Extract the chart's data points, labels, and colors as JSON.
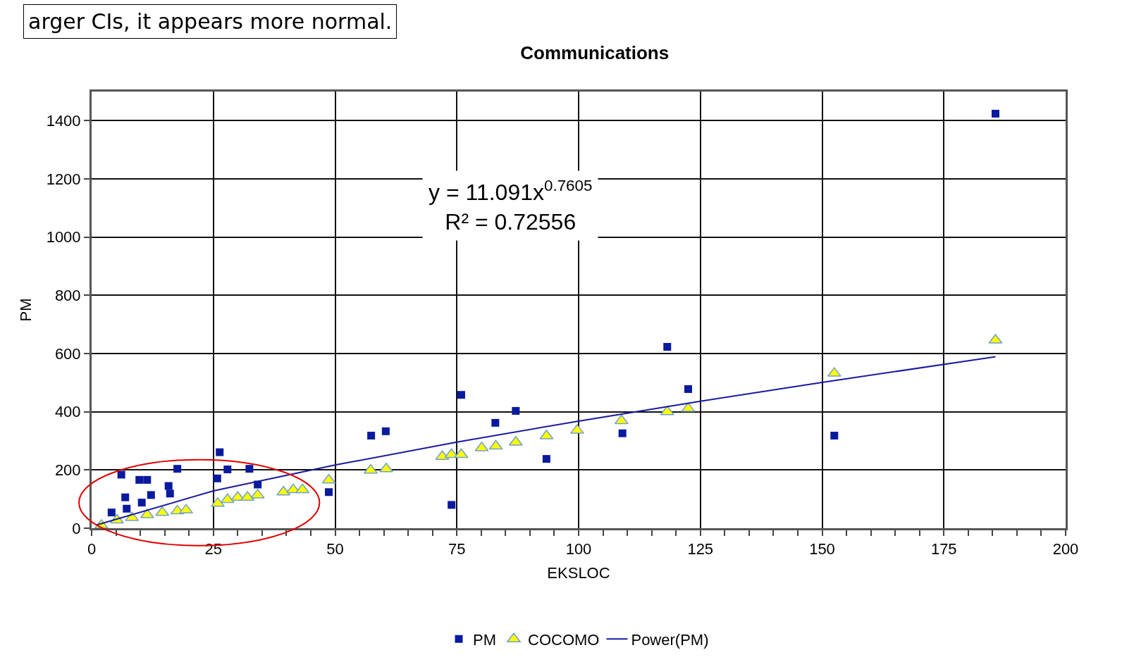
{
  "chart_data": {
    "type": "scatter",
    "title": "Communications",
    "xlabel": "EKSLOC",
    "ylabel": "PM",
    "xlim": [
      0,
      200
    ],
    "ylim": [
      0,
      1500
    ],
    "xticks": [
      0,
      {
        "value": 5,
        "label": null
      },
      {
        "value": 10,
        "label": null
      },
      {
        "value": 15,
        "label": null
      },
      {
        "value": 20,
        "label": null
      },
      25,
      {
        "value": 30,
        "label": null
      },
      {
        "value": 35,
        "label": null
      },
      {
        "value": 40,
        "label": null
      },
      {
        "value": 45,
        "label": null
      },
      50,
      {
        "value": 55,
        "label": null
      },
      {
        "value": 60,
        "label": null
      },
      {
        "value": 65,
        "label": null
      },
      {
        "value": 70,
        "label": null
      },
      75,
      {
        "value": 80,
        "label": null
      },
      {
        "value": 85,
        "label": null
      },
      {
        "value": 90,
        "label": null
      },
      {
        "value": 95,
        "label": null
      },
      100,
      {
        "value": 105,
        "label": null
      },
      {
        "value": 110,
        "label": null
      },
      {
        "value": 115,
        "label": null
      },
      {
        "value": 120,
        "label": null
      },
      125,
      {
        "value": 130,
        "label": null
      },
      {
        "value": 135,
        "label": null
      },
      {
        "value": 140,
        "label": null
      },
      {
        "value": 145,
        "label": null
      },
      150,
      {
        "value": 155,
        "label": null
      },
      {
        "value": 160,
        "label": null
      },
      {
        "value": 165,
        "label": null
      },
      {
        "value": 170,
        "label": null
      },
      175,
      {
        "value": 180,
        "label": null
      },
      {
        "value": 185,
        "label": null
      },
      {
        "value": 190,
        "label": null
      },
      {
        "value": 195,
        "label": null
      },
      200
    ],
    "yticks": [
      0,
      200,
      400,
      600,
      800,
      1000,
      1200,
      1400
    ],
    "grid": true,
    "legend": "bottom",
    "series": [
      {
        "name": "PM",
        "marker": "square",
        "color": "#0a1a9e",
        "x": [
          6.1,
          9.8,
          11.4,
          6.9,
          12.2,
          10.3,
          15.8,
          16.1,
          17.6,
          26.3,
          25.8,
          27.9,
          32.4,
          34.1,
          7.2,
          4.1,
          48.7,
          57.4,
          60.4,
          73.9,
          75.9,
          82.9,
          87.1,
          93.4,
          109,
          118.2,
          122.5,
          152.5,
          185.6
        ],
        "values": [
          184,
          166,
          166,
          106,
          114,
          88,
          145,
          119,
          204,
          261,
          171,
          202,
          204,
          150,
          67,
          54,
          124,
          318,
          333,
          80,
          458,
          362,
          403,
          238,
          326,
          623,
          478,
          318,
          1424
        ]
      },
      {
        "name": "COCOMO",
        "marker": "triangle",
        "color": "#ffff00",
        "x": [
          2,
          5.2,
          8.3,
          11.4,
          14.5,
          17.6,
          19.4,
          25.9,
          27.9,
          30,
          32,
          34.1,
          39.4,
          41.4,
          43.3,
          48.7,
          57.3,
          60.5,
          72,
          73.9,
          75.9,
          80.1,
          83,
          87.1,
          93.4,
          99.7,
          108.8,
          118.2,
          122.5,
          152.5,
          185.6
        ],
        "values": [
          10,
          28,
          36,
          46,
          54,
          59,
          62,
          85,
          98,
          106,
          106,
          114,
          124,
          132,
          132,
          165,
          199,
          204,
          246,
          253,
          253,
          276,
          282,
          295,
          317,
          336,
          369,
          400,
          411,
          532,
          646
        ]
      },
      {
        "name": "Power(PM)",
        "type": "line",
        "marker": "none",
        "line_style": "solid",
        "color": "#1a1aa0",
        "x": [
          1,
          25,
          50,
          75,
          100,
          125,
          150,
          185.6
        ],
        "values": [
          11,
          128,
          217,
          296,
          368,
          436,
          501,
          589
        ]
      }
    ],
    "annotations": [
      "y = 11.091x$^{0.7605}$\nR² = 0.72556",
      "arger CIs, it appears more normal."
    ]
  }
}
